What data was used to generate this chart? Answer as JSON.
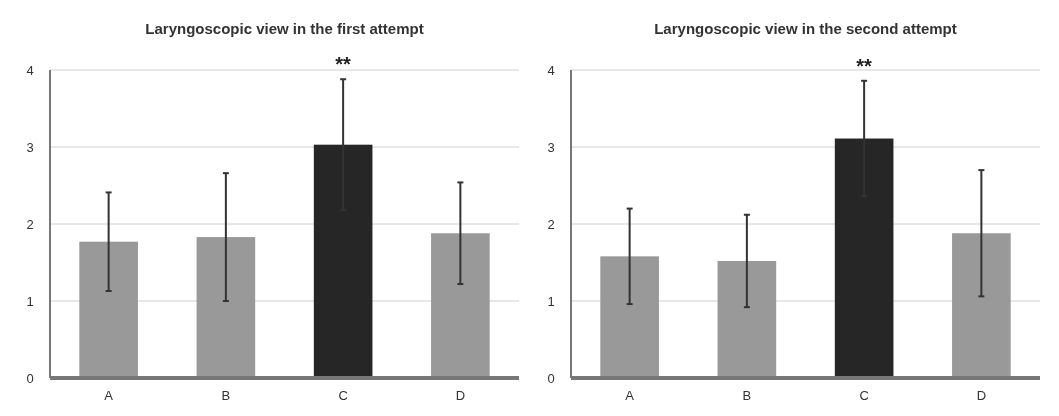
{
  "chart_data": [
    {
      "type": "bar",
      "title": "Laryngoscopic view in the first attempt",
      "categories": [
        "A",
        "B",
        "C",
        "D"
      ],
      "values": [
        1.77,
        1.83,
        3.03,
        1.88
      ],
      "colors": [
        "#999999",
        "#999999",
        "#262626",
        "#999999"
      ],
      "errors": [
        0.64,
        0.83,
        0.85,
        0.66
      ],
      "ylim": [
        0,
        4
      ],
      "yticks": [
        0,
        1,
        2,
        3,
        4
      ],
      "grid": "y",
      "annotations": [
        "**"
      ]
    },
    {
      "type": "bar",
      "title": "Laryngoscopic view in the second attempt",
      "categories": [
        "A",
        "B",
        "C",
        "D"
      ],
      "values": [
        1.58,
        1.52,
        3.11,
        1.88
      ],
      "colors": [
        "#999999",
        "#999999",
        "#262626",
        "#999999"
      ],
      "errors": [
        0.62,
        0.6,
        0.75,
        0.82
      ],
      "ylim": [
        0,
        4
      ],
      "yticks": [
        0,
        1,
        2,
        3,
        4
      ],
      "grid": "y",
      "annotations": [
        "**"
      ]
    }
  ]
}
